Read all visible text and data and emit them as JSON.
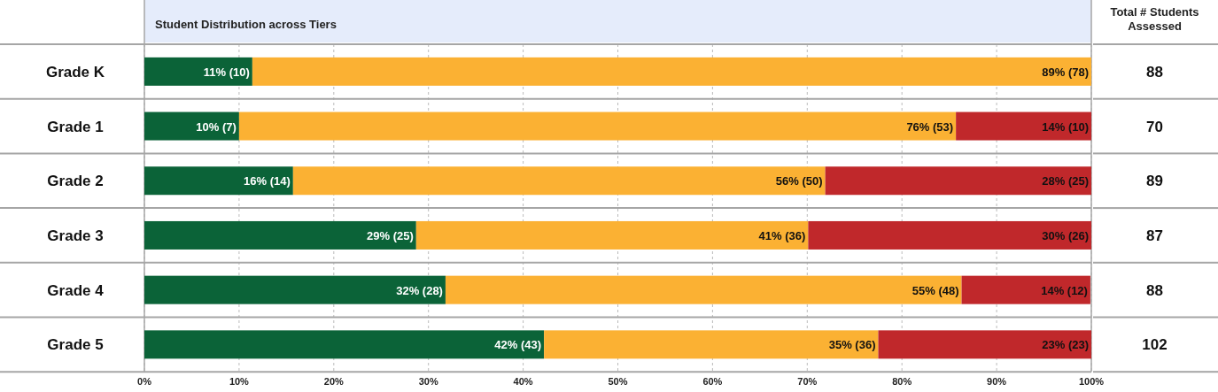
{
  "chart_data": {
    "type": "bar",
    "orientation": "horizontal",
    "stacked": true,
    "title": "Student Distribution across Tiers",
    "categories": [
      "Grade K",
      "Grade 1",
      "Grade 2",
      "Grade 3",
      "Grade 4",
      "Grade 5"
    ],
    "series": [
      {
        "color": "#0b6338",
        "values": [
          11.4,
          10,
          15.7,
          28.7,
          31.8,
          42.2
        ],
        "value_labels": [
          "11% (10)",
          "10% (7)",
          "16% (14)",
          "29% (25)",
          "32% (28)",
          "42% (43)"
        ]
      },
      {
        "color": "#fbb133",
        "values": [
          88.6,
          75.7,
          56.2,
          41.4,
          54.5,
          35.3
        ],
        "value_labels": [
          "89% (78)",
          "76% (53)",
          "56% (50)",
          "41% (36)",
          "55% (48)",
          "35% (36)"
        ]
      },
      {
        "color": "#c0282b",
        "values": [
          null,
          14.3,
          28.1,
          29.9,
          13.6,
          22.5
        ],
        "value_labels": [
          null,
          "14% (10)",
          "28% (25)",
          "30% (26)",
          "14% (12)",
          "23% (23)"
        ]
      }
    ],
    "xlim": [
      0,
      100
    ],
    "xticks": [
      {
        "value": 0,
        "label": "0%"
      },
      {
        "value": 10,
        "label": "10%"
      },
      {
        "value": 20,
        "label": "20%"
      },
      {
        "value": 30,
        "label": "30%"
      },
      {
        "value": 40,
        "label": "40%"
      },
      {
        "value": 50,
        "label": "50%"
      },
      {
        "value": 60,
        "label": "60%"
      },
      {
        "value": 70,
        "label": "70%"
      },
      {
        "value": 80,
        "label": "80%"
      },
      {
        "value": 90,
        "label": "90%"
      },
      {
        "value": 100,
        "label": "100%"
      }
    ],
    "grid": "x",
    "annotations": [
      "Total # Students Assessed",
      "88",
      "70",
      "89",
      "87",
      "88",
      "102"
    ]
  }
}
